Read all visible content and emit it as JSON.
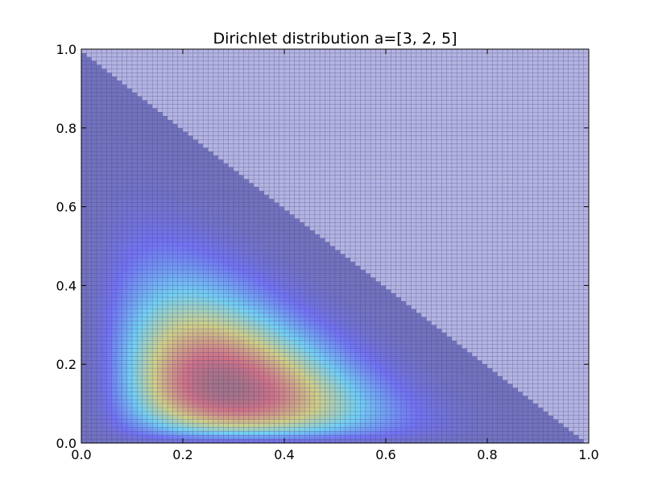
{
  "chart_data": {
    "type": "heatmap",
    "title": "Dirichlet distribution a=[3, 2, 5]",
    "xlabel": "",
    "ylabel": "",
    "alpha": [
      3,
      2,
      5
    ],
    "xlim": [
      0.0,
      1.0
    ],
    "ylim": [
      0.0,
      1.0
    ],
    "x_ticks": [
      "0.0",
      "0.2",
      "0.4",
      "0.6",
      "0.8",
      "1.0"
    ],
    "y_ticks": [
      "0.0",
      "0.2",
      "0.4",
      "0.6",
      "0.8",
      "1.0"
    ],
    "grid_cells": 100,
    "colormap": "jet",
    "mesh_edges": true,
    "peak": {
      "x": 0.29,
      "y": 0.21
    },
    "outside_simplex_color": "#b4b4e0",
    "mesh_line_color": "#3a3a8c"
  }
}
